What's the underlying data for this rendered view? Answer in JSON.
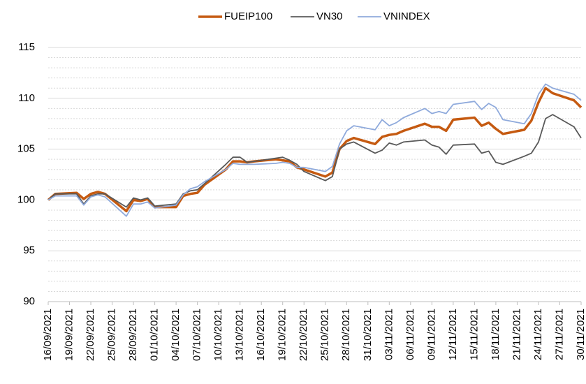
{
  "chart_data": {
    "type": "line",
    "x": [
      "16/09/2021",
      "17/09/2021",
      "20/09/2021",
      "21/09/2021",
      "22/09/2021",
      "23/09/2021",
      "24/09/2021",
      "27/09/2021",
      "28/09/2021",
      "29/09/2021",
      "30/09/2021",
      "01/10/2021",
      "04/10/2021",
      "05/10/2021",
      "06/10/2021",
      "07/10/2021",
      "08/10/2021",
      "11/10/2021",
      "12/10/2021",
      "13/10/2021",
      "14/10/2021",
      "15/10/2021",
      "18/10/2021",
      "19/10/2021",
      "20/10/2021",
      "21/10/2021",
      "22/10/2021",
      "25/10/2021",
      "26/10/2021",
      "27/10/2021",
      "28/10/2021",
      "29/10/2021",
      "01/11/2021",
      "02/11/2021",
      "03/11/2021",
      "04/11/2021",
      "05/11/2021",
      "08/11/2021",
      "09/11/2021",
      "10/11/2021",
      "11/11/2021",
      "12/11/2021",
      "15/11/2021",
      "16/11/2021",
      "17/11/2021",
      "18/11/2021",
      "19/11/2021",
      "22/11/2021",
      "23/11/2021",
      "24/11/2021",
      "25/11/2021",
      "26/11/2021",
      "29/11/2021",
      "30/11/2021"
    ],
    "series": [
      {
        "name": "FUEIP100",
        "color": "#c55a11",
        "values": [
          100,
          100.6,
          100.7,
          100.1,
          100.6,
          100.8,
          100.6,
          98.9,
          100,
          99.9,
          100.1,
          99.3,
          99.3,
          100.4,
          100.6,
          100.7,
          101.5,
          103,
          103.8,
          103.8,
          103.7,
          103.8,
          104,
          103.9,
          103.8,
          103.2,
          103,
          102.3,
          102.7,
          105,
          105.8,
          106.1,
          105.5,
          106.2,
          106.4,
          106.5,
          106.8,
          107.5,
          107.2,
          107.2,
          106.8,
          107.9,
          108.1,
          107.3,
          107.6,
          107,
          106.5,
          106.9,
          107.8,
          109.6,
          111,
          110.5,
          109.8,
          109.1
        ]
      },
      {
        "name": "VN30",
        "color": "#595959",
        "values": [
          100,
          100.6,
          100.6,
          99.6,
          100.4,
          100.6,
          100.6,
          99.3,
          100.2,
          100,
          100.2,
          99.4,
          99.6,
          100.6,
          100.9,
          101,
          101.6,
          103.5,
          104.2,
          104.2,
          103.7,
          103.8,
          104.1,
          104.2,
          103.9,
          103.5,
          102.8,
          101.9,
          102.3,
          105,
          105.5,
          105.7,
          104.6,
          104.9,
          105.6,
          105.4,
          105.7,
          105.9,
          105.4,
          105.2,
          104.5,
          105.4,
          105.5,
          104.6,
          104.8,
          103.7,
          103.5,
          104.3,
          104.6,
          105.7,
          108,
          108.4,
          107.2,
          106.1
        ]
      },
      {
        "name": "VNINDEX",
        "color": "#8faadc",
        "values": [
          100,
          100.4,
          100.4,
          99.5,
          100.3,
          100.5,
          100.3,
          98.4,
          99.6,
          99.6,
          99.8,
          99.2,
          99.5,
          100.5,
          101.1,
          101.3,
          101.8,
          103,
          103.6,
          103.5,
          103.5,
          103.5,
          103.6,
          103.7,
          103.6,
          103.2,
          103.2,
          102.8,
          103.3,
          105.5,
          106.8,
          107.3,
          106.9,
          107.9,
          107.3,
          107.6,
          108.1,
          109,
          108.5,
          108.7,
          108.5,
          109.4,
          109.7,
          108.9,
          109.5,
          109.1,
          107.9,
          107.5,
          108.5,
          110.4,
          111.4,
          111,
          110.4,
          109.8
        ]
      }
    ],
    "xticks": [
      "16/09/2021",
      "19/09/2021",
      "22/09/2021",
      "25/09/2021",
      "28/09/2021",
      "01/10/2021",
      "04/10/2021",
      "07/10/2021",
      "10/10/2021",
      "13/10/2021",
      "16/10/2021",
      "19/10/2021",
      "22/10/2021",
      "25/10/2021",
      "28/10/2021",
      "31/10/2021",
      "03/11/2021",
      "06/11/2021",
      "09/11/2021",
      "12/11/2021",
      "15/11/2021",
      "18/11/2021",
      "21/11/2021",
      "24/11/2021",
      "27/11/2021",
      "30/11/2021"
    ],
    "ylim": [
      90,
      115
    ],
    "yticks": [
      90,
      95,
      100,
      105,
      110,
      115
    ],
    "grid": true,
    "minor_grid": true,
    "legend": "top"
  }
}
